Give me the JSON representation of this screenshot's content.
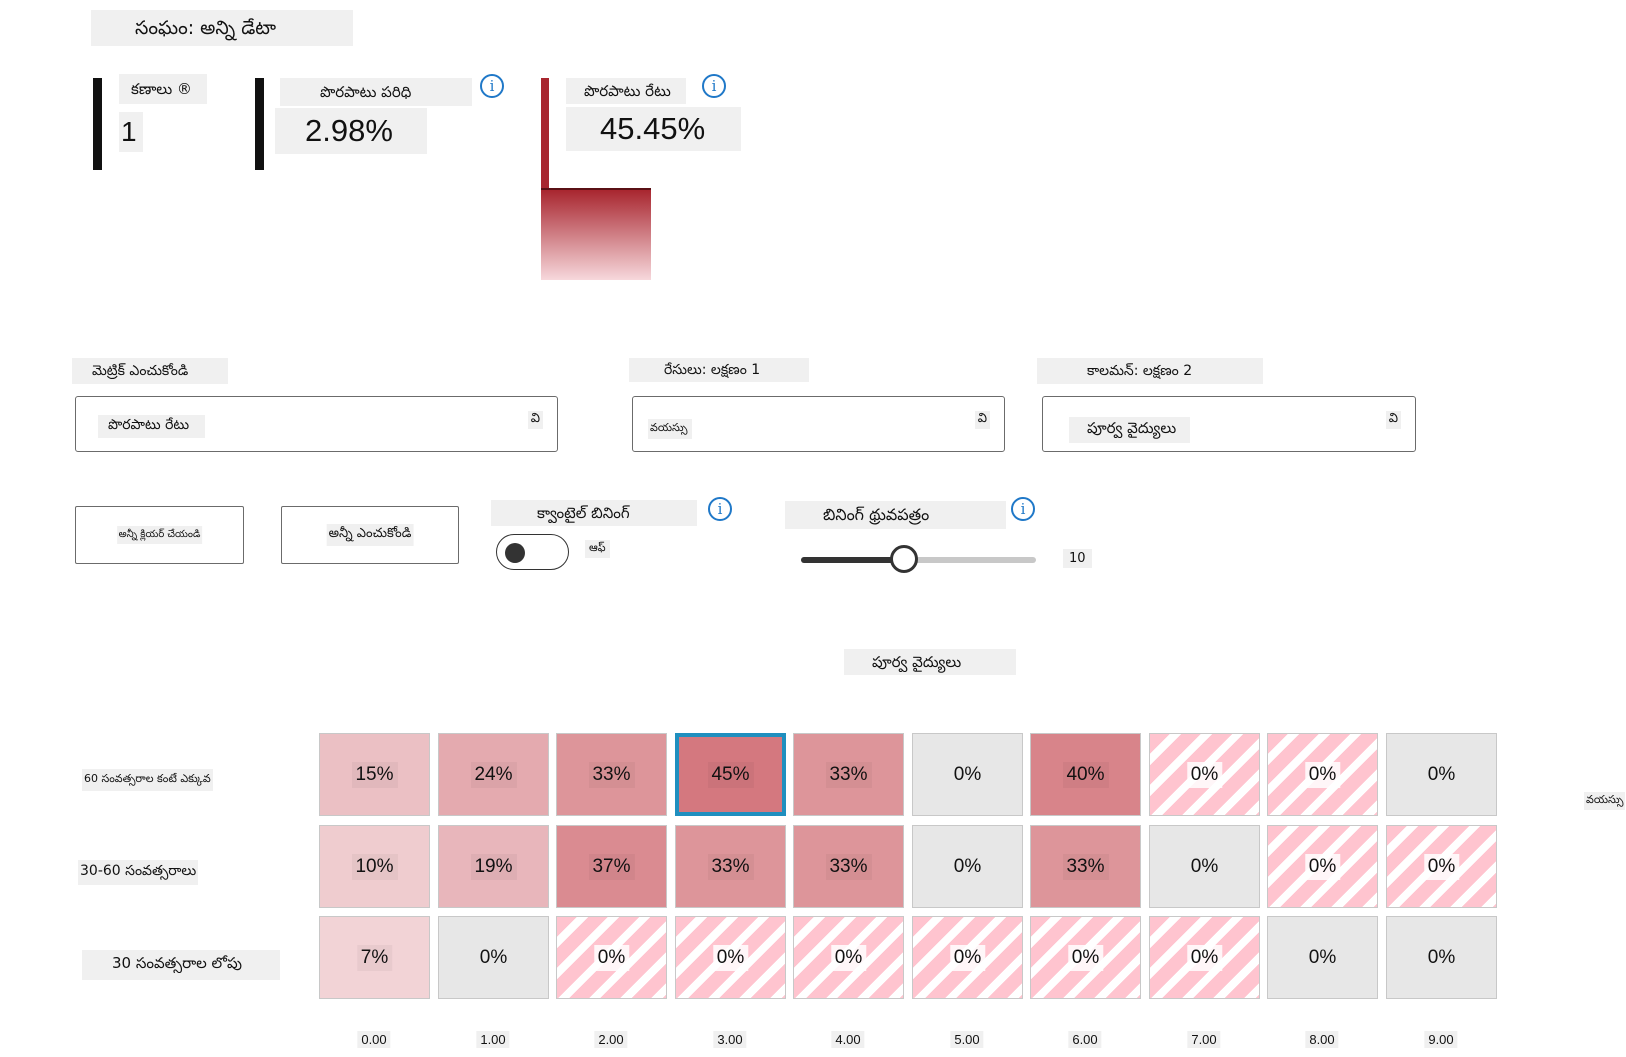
{
  "cohort": {
    "label": "సంఘం: అన్ని డేటా"
  },
  "metrics": {
    "count": {
      "label": "కణాలు ®",
      "value": "1"
    },
    "error_coverage": {
      "label": "పొరపాటు పరిధి",
      "value": "2.98%",
      "info_icon": "info-icon"
    },
    "error_rate": {
      "label": "పొరపాటు రేటు",
      "value": "45.45%",
      "level": 0.4545,
      "info_icon": "info-icon"
    }
  },
  "controls": {
    "metric_encoding": {
      "label": "మెట్రిక్ ఎంచుకోండి",
      "value": "పొరపాటు రేటు",
      "chevron": "వి"
    },
    "rows_feature": {
      "label": "రేసులు: లక్షణం 1",
      "value": "వయస్సు",
      "chevron": "వి"
    },
    "columns_feature": {
      "label": "కాలమన్: లక్షణం 2",
      "value": "పూర్వ వైద్యులు",
      "chevron": "వి"
    },
    "clear_all": "అన్నీ క్లియర్ చేయండి",
    "select_all": "అన్నీ ఎంచుకోండి",
    "quantile_binning": {
      "label": "క్వాంటైల్ బినింగ్",
      "state": "ఆఫ్",
      "on": false
    },
    "binning_threshold": {
      "label": "బినింగ్ థ్రువపత్రం",
      "value": "10",
      "level": 0.44
    }
  },
  "heatmap": {
    "column_axis_title": "పూర్వ వైద్యులు",
    "row_axis_title": "వయస్సు",
    "colors": {
      "max": "#d4787f",
      "zero": "#e7e7e7",
      "na_stripe": "#ffc4cf",
      "selected_border": "#1f8fbf"
    },
    "rows": [
      "60 సంవత్సరాల కంటే ఎక్కువ",
      "30-60 సంవత్సరాలు",
      "30 సంవత్సరాల లోపు"
    ],
    "columns": [
      "0.00",
      "1.00",
      "2.00",
      "3.00",
      "4.00",
      "5.00",
      "6.00",
      "7.00",
      "8.00",
      "9.00"
    ],
    "cells": [
      [
        {
          "text": "15%",
          "v": 15,
          "t": "v"
        },
        {
          "text": "24%",
          "v": 24,
          "t": "v"
        },
        {
          "text": "33%",
          "v": 33,
          "t": "v"
        },
        {
          "text": "45%",
          "v": 45,
          "t": "v",
          "sel": true
        },
        {
          "text": "33%",
          "v": 33,
          "t": "v"
        },
        {
          "text": "0%",
          "v": 0,
          "t": "z"
        },
        {
          "text": "40%",
          "v": 40,
          "t": "v"
        },
        {
          "text": "0%",
          "v": 0,
          "t": "n"
        },
        {
          "text": "0%",
          "v": 0,
          "t": "n"
        },
        {
          "text": "0%",
          "v": 0,
          "t": "z"
        }
      ],
      [
        {
          "text": "10%",
          "v": 10,
          "t": "v"
        },
        {
          "text": "19%",
          "v": 19,
          "t": "v"
        },
        {
          "text": "37%",
          "v": 37,
          "t": "v"
        },
        {
          "text": "33%",
          "v": 33,
          "t": "v"
        },
        {
          "text": "33%",
          "v": 33,
          "t": "v"
        },
        {
          "text": "0%",
          "v": 0,
          "t": "z"
        },
        {
          "text": "33%",
          "v": 33,
          "t": "v"
        },
        {
          "text": "0%",
          "v": 0,
          "t": "z"
        },
        {
          "text": "0%",
          "v": 0,
          "t": "n"
        },
        {
          "text": "0%",
          "v": 0,
          "t": "n"
        }
      ],
      [
        {
          "text": "7%",
          "v": 7,
          "t": "v"
        },
        {
          "text": "0%",
          "v": 0,
          "t": "z"
        },
        {
          "text": "0%",
          "v": 0,
          "t": "n"
        },
        {
          "text": "0%",
          "v": 0,
          "t": "n"
        },
        {
          "text": "0%",
          "v": 0,
          "t": "n"
        },
        {
          "text": "0%",
          "v": 0,
          "t": "n"
        },
        {
          "text": "0%",
          "v": 0,
          "t": "n"
        },
        {
          "text": "0%",
          "v": 0,
          "t": "n"
        },
        {
          "text": "0%",
          "v": 0,
          "t": "z"
        },
        {
          "text": "0%",
          "v": 0,
          "t": "z"
        }
      ]
    ]
  }
}
